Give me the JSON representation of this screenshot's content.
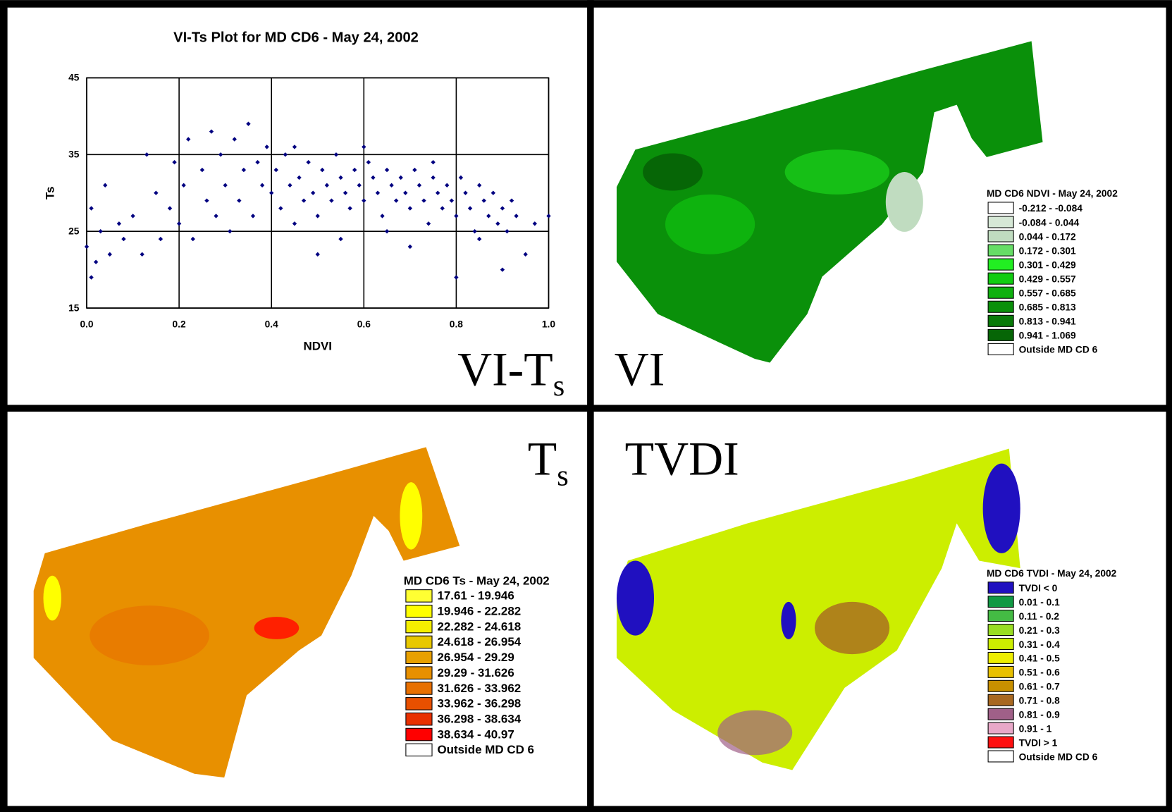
{
  "chart_data": {
    "type": "scatter",
    "title": "VI-Ts Plot for MD CD6 - May 24, 2002",
    "x_label": "NDVI",
    "y_label": "Ts",
    "color": "#000080",
    "x": [
      0.0,
      0.01,
      0.01,
      0.02,
      0.03,
      0.04,
      0.05,
      0.07,
      0.08,
      0.1,
      0.12,
      0.13,
      0.15,
      0.16,
      0.18,
      0.19,
      0.2,
      0.21,
      0.22,
      0.23,
      0.25,
      0.26,
      0.27,
      0.28,
      0.29,
      0.3,
      0.31,
      0.32,
      0.33,
      0.34,
      0.35,
      0.36,
      0.37,
      0.38,
      0.39,
      0.4,
      0.41,
      0.42,
      0.43,
      0.44,
      0.45,
      0.46,
      0.47,
      0.48,
      0.49,
      0.5,
      0.51,
      0.52,
      0.53,
      0.54,
      0.55,
      0.56,
      0.57,
      0.58,
      0.59,
      0.6,
      0.61,
      0.62,
      0.63,
      0.64,
      0.65,
      0.66,
      0.67,
      0.68,
      0.69,
      0.7,
      0.71,
      0.72,
      0.73,
      0.74,
      0.75,
      0.76,
      0.77,
      0.78,
      0.79,
      0.8,
      0.81,
      0.82,
      0.83,
      0.84,
      0.85,
      0.86,
      0.87,
      0.88,
      0.89,
      0.9,
      0.91,
      0.92,
      0.93,
      0.95,
      0.97,
      1.0,
      0.6,
      0.55,
      0.7,
      0.8,
      0.5,
      0.65,
      0.75,
      0.45,
      0.85,
      0.9
    ],
    "y": [
      23,
      19,
      28,
      21,
      25,
      31,
      22,
      26,
      24,
      27,
      22,
      35,
      30,
      24,
      28,
      34,
      26,
      31,
      37,
      24,
      33,
      29,
      38,
      27,
      35,
      31,
      25,
      37,
      29,
      33,
      39,
      27,
      34,
      31,
      36,
      30,
      33,
      28,
      35,
      31,
      26,
      32,
      29,
      34,
      30,
      27,
      33,
      31,
      29,
      35,
      32,
      30,
      28,
      33,
      31,
      29,
      34,
      32,
      30,
      27,
      33,
      31,
      29,
      32,
      30,
      28,
      33,
      31,
      29,
      26,
      32,
      30,
      28,
      31,
      29,
      27,
      32,
      30,
      28,
      25,
      31,
      29,
      27,
      30,
      26,
      28,
      25,
      29,
      27,
      22,
      26,
      27,
      36,
      24,
      23,
      19,
      22,
      25,
      34,
      36,
      24,
      20
    ],
    "xlim": [
      0,
      1
    ],
    "ylim": [
      15,
      45
    ],
    "xticks": [
      {
        "value": 0,
        "label": "0.0"
      },
      0.2,
      0.4,
      0.6,
      0.8,
      {
        "value": 1,
        "label": "1.0"
      }
    ],
    "yticks": [
      15,
      25,
      35,
      45
    ],
    "grid": true
  },
  "panel_label": {
    "main": "VI-T",
    "sub": "s"
  },
  "maps": [
    {
      "label": {
        "main": "VI"
      },
      "legend": {
        "title": "MD CD6 NDVI - May 24, 2002",
        "items": [
          {
            "label": "-0.212 - -0.084",
            "color": "#ffffff"
          },
          {
            "label": "-0.084 - 0.044",
            "color": "#d6e8d6"
          },
          {
            "label": "0.044 - 0.172",
            "color": "#c0dcc0"
          },
          {
            "label": "0.172 - 0.301",
            "color": "#66dd66"
          },
          {
            "label": "0.301 - 0.429",
            "color": "#22ee22"
          },
          {
            "label": "0.429 - 0.557",
            "color": "#11cc11"
          },
          {
            "label": "0.557 - 0.685",
            "color": "#0fb00f"
          },
          {
            "label": "0.685 - 0.813",
            "color": "#0a900a"
          },
          {
            "label": "0.813 - 0.941",
            "color": "#087a08"
          },
          {
            "label": "0.941 - 1.069",
            "color": "#066606"
          },
          {
            "label": "Outside MD CD 6",
            "color": "#ffffff"
          }
        ]
      }
    },
    {
      "label": {
        "main": "T",
        "sub": "s"
      },
      "legend": {
        "title": "MD CD6 Ts - May 24, 2002",
        "items": [
          {
            "label": "17.61 - 19.946",
            "color": "#ffff33"
          },
          {
            "label": "19.946 - 22.282",
            "color": "#ffff00"
          },
          {
            "label": "22.282 - 24.618",
            "color": "#f5ef00"
          },
          {
            "label": "24.618 - 26.954",
            "color": "#e8c800"
          },
          {
            "label": "26.954 - 29.29",
            "color": "#e8a000"
          },
          {
            "label": "29.29 - 31.626",
            "color": "#e89000"
          },
          {
            "label": "31.626 - 33.962",
            "color": "#e87000"
          },
          {
            "label": "33.962 - 36.298",
            "color": "#e85000"
          },
          {
            "label": "36.298 - 38.634",
            "color": "#e83000"
          },
          {
            "label": "38.634 - 40.97",
            "color": "#ff0000"
          },
          {
            "label": "Outside MD CD 6",
            "color": "#ffffff"
          }
        ]
      }
    },
    {
      "label": {
        "main": "TVDI"
      },
      "legend": {
        "title": "MD CD6 TVDI - May 24, 2002",
        "items": [
          {
            "label": "TVDI < 0",
            "color": "#2010c0"
          },
          {
            "label": "0.01 - 0.1",
            "color": "#119944"
          },
          {
            "label": "0.11 - 0.2",
            "color": "#44bb44"
          },
          {
            "label": "0.21 - 0.3",
            "color": "#99dd22"
          },
          {
            "label": "0.31 - 0.4",
            "color": "#ccee00"
          },
          {
            "label": "0.41 - 0.5",
            "color": "#eeee00"
          },
          {
            "label": "0.51 - 0.6",
            "color": "#e8c000"
          },
          {
            "label": "0.61 - 0.7",
            "color": "#c89000"
          },
          {
            "label": "0.71 - 0.8",
            "color": "#a86820"
          },
          {
            "label": "0.81 - 0.9",
            "color": "#a06088"
          },
          {
            "label": "0.91 - 1",
            "color": "#e8a8c8"
          },
          {
            "label": "TVDI > 1",
            "color": "#ff1010"
          },
          {
            "label": "Outside MD CD 6",
            "color": "#ffffff"
          }
        ]
      }
    }
  ]
}
